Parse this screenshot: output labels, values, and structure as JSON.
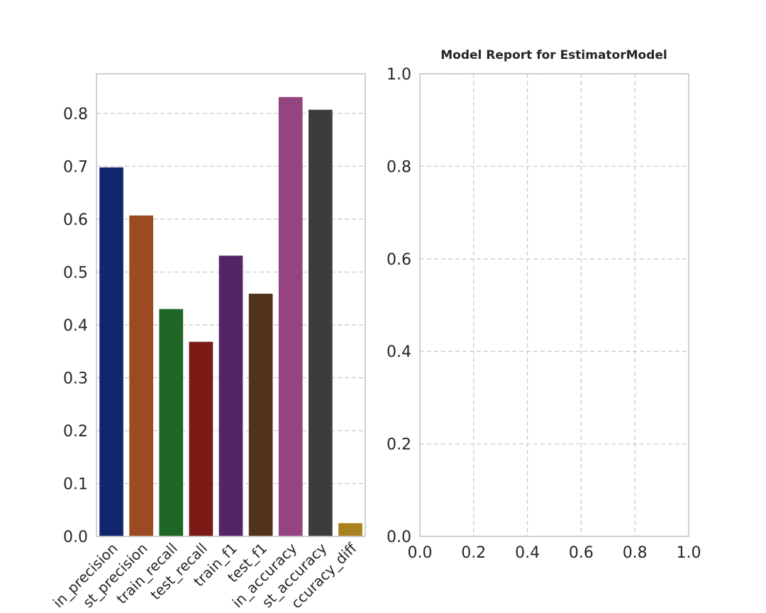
{
  "chart_data": [
    {
      "type": "bar",
      "title": "",
      "xlabel": "",
      "ylabel": "",
      "categories": [
        "train_precision",
        "test_precision",
        "train_recall",
        "test_recall",
        "train_f1",
        "test_f1",
        "train_accuracy",
        "test_accuracy",
        "accuracy_diff"
      ],
      "visible_category_labels": [
        "in_precision",
        "st_precision",
        "train_recall",
        "test_recall",
        "train_f1",
        "test_f1",
        "in_accuracy",
        "st_accuracy",
        "ccuracy_diff"
      ],
      "values": [
        0.698,
        0.607,
        0.43,
        0.368,
        0.531,
        0.459,
        0.831,
        0.807,
        0.025
      ],
      "colors": [
        "#12266f",
        "#9c4a21",
        "#1f6726",
        "#7c1a15",
        "#532566",
        "#51321a",
        "#964381",
        "#3c3c3c",
        "#a8821f"
      ],
      "ylim": [
        0,
        0.875
      ],
      "yticks": [
        "0.0",
        "0.1",
        "0.2",
        "0.3",
        "0.4",
        "0.5",
        "0.6",
        "0.7",
        "0.8"
      ],
      "grid": true
    },
    {
      "type": "line",
      "title": "Model Report for EstimatorModel",
      "xlabel": "",
      "ylabel": "",
      "series": [],
      "xlim": [
        0,
        1
      ],
      "ylim": [
        0,
        1
      ],
      "xticks": [
        "0.0",
        "0.2",
        "0.4",
        "0.6",
        "0.8",
        "1.0"
      ],
      "yticks": [
        "0.0",
        "0.2",
        "0.4",
        "0.6",
        "0.8",
        "1.0"
      ],
      "grid": true
    }
  ]
}
